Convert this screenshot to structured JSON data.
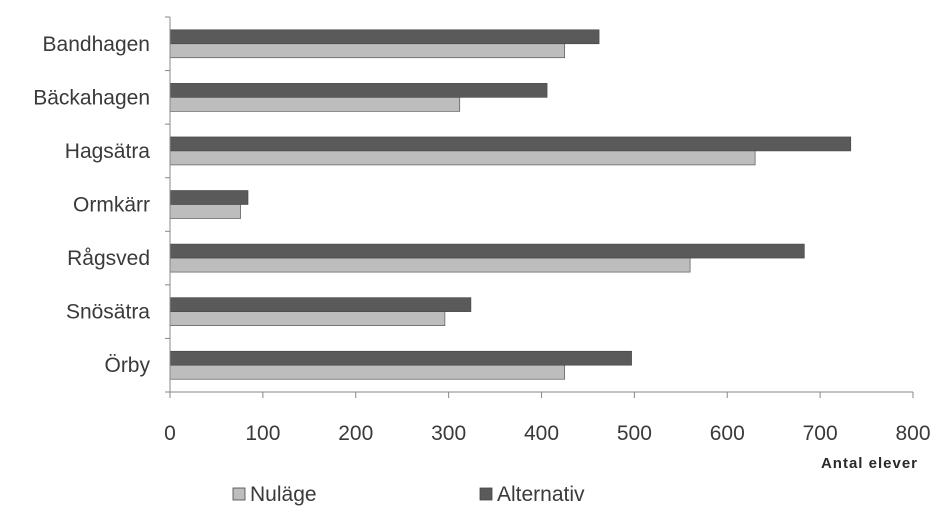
{
  "chart_data": {
    "type": "bar",
    "orientation": "horizontal",
    "categories": [
      "Bandhagen",
      "Bäckahagen",
      "Hagsätra",
      "Ormkärr",
      "Rågsved",
      "Snösätra",
      "Örby"
    ],
    "series": [
      {
        "name": "Nuläge",
        "values": [
          425,
          312,
          630,
          76,
          560,
          296,
          425
        ],
        "color": "#bdbdbd"
      },
      {
        "name": "Alternativ",
        "values": [
          462,
          406,
          733,
          84,
          683,
          324,
          497
        ],
        "color": "#5a5a5a"
      }
    ],
    "xlabel": "Antal elever",
    "ylabel": "",
    "xlim": [
      0,
      800
    ],
    "xticks": [
      0,
      100,
      200,
      300,
      400,
      500,
      600,
      700,
      800
    ],
    "grid": false,
    "legend_position": "bottom"
  }
}
